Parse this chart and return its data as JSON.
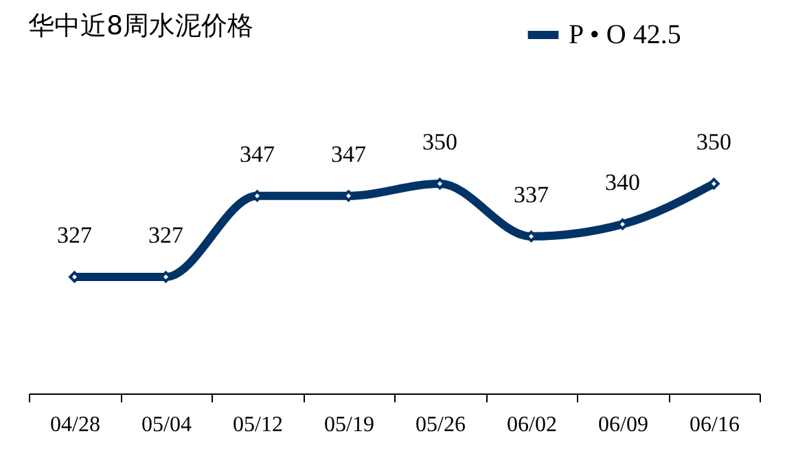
{
  "chart_data": {
    "type": "line",
    "title": "华中近8周水泥价格",
    "categories": [
      "04/28",
      "05/04",
      "05/12",
      "05/19",
      "05/26",
      "06/02",
      "06/09",
      "06/16"
    ],
    "series": [
      {
        "name": "P • O 42.5",
        "color": "#003366",
        "values": [
          327,
          327,
          347,
          347,
          350,
          337,
          340,
          350
        ]
      }
    ],
    "data_labels": true,
    "legend": "top right",
    "marker": "diamond",
    "grid": false
  }
}
